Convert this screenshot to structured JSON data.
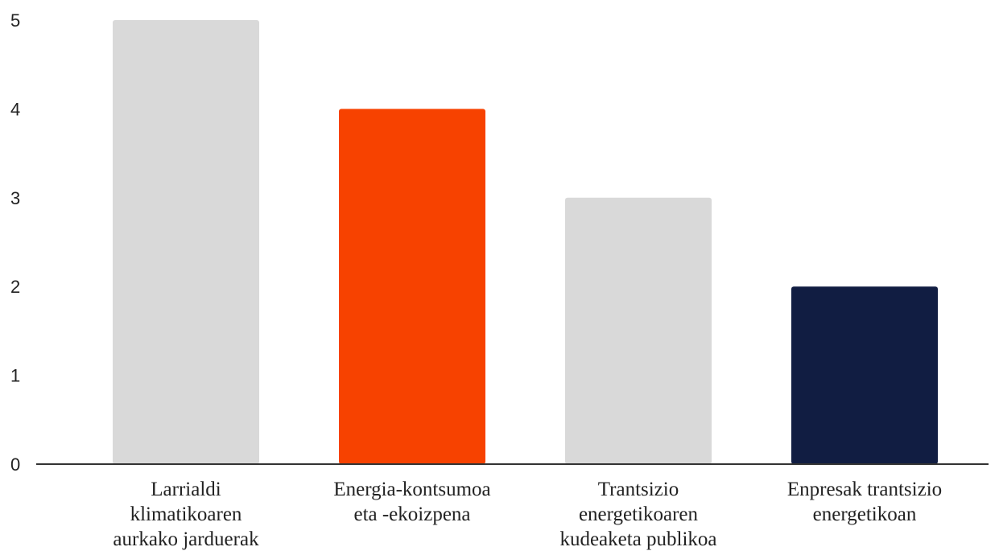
{
  "chart_data": {
    "type": "bar",
    "title": "",
    "xlabel": "",
    "ylabel": "",
    "categories": [
      [
        "Larrialdi",
        "klimatikoaren",
        "aurkako jarduerak"
      ],
      [
        "Energia-kontsumoa",
        "eta -ekoizpena"
      ],
      [
        "Trantsizio",
        "energetikoaren",
        "kudeaketa publikoa"
      ],
      [
        "Enpresak trantsizio",
        "energetikoan"
      ]
    ],
    "values": [
      5,
      4,
      3,
      2
    ],
    "colors": [
      "#d9d9d9",
      "#f74200",
      "#d9d9d9",
      "#111d42"
    ],
    "ylim": [
      0,
      5
    ],
    "yticks": [
      "0",
      "1",
      "2",
      "3",
      "4",
      "5"
    ],
    "grid": false,
    "legend": "none"
  }
}
